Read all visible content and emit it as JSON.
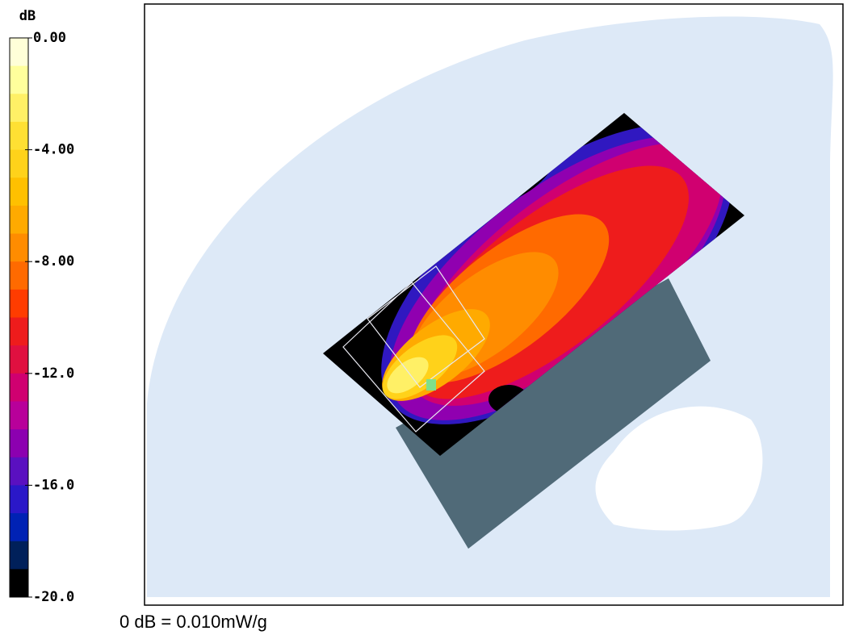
{
  "colorbar": {
    "unit": "dB",
    "ticks": [
      {
        "value": 0,
        "label": "0.00"
      },
      {
        "value": -4,
        "label": "-4.00"
      },
      {
        "value": -8,
        "label": "-8.00"
      },
      {
        "value": -12,
        "label": "-12.0"
      },
      {
        "value": -16,
        "label": "-16.0"
      },
      {
        "value": -20,
        "label": "-20.0"
      }
    ],
    "colors": [
      "#ffffd8",
      "#ffff9c",
      "#fff066",
      "#ffe033",
      "#ffd21a",
      "#ffc000",
      "#ffaa00",
      "#ff8c00",
      "#ff6a00",
      "#ff3c00",
      "#ee1c1c",
      "#e01040",
      "#d00070",
      "#b8009a",
      "#8c00b0",
      "#5a10c0",
      "#2a18c8",
      "#0022b4",
      "#00205a",
      "#000000"
    ]
  },
  "footer": "0 dB = 0.010mW/g"
}
